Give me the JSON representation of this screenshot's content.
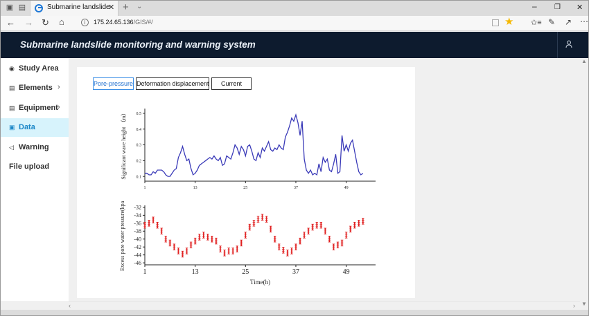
{
  "browser": {
    "tab_title": "Submarine landslide",
    "url_host": "175.24.65.136",
    "url_path": "/GIS/#/"
  },
  "icons": {
    "tab_actions": "tab-actions-icon",
    "tab_preview": "tab-preview-icon",
    "favicon": "edge-favicon-icon",
    "close": "close-icon",
    "new_tab": "plus-icon",
    "back": "back-arrow-icon",
    "forward": "forward-arrow-icon",
    "refresh": "refresh-icon",
    "home": "home-icon",
    "favorite": "star-icon",
    "user": "user-icon"
  },
  "app": {
    "title": "Submarine landslide monitoring and warning system"
  },
  "sidebar": {
    "items": [
      {
        "label": "Study Area",
        "icon": "map-pin-icon",
        "has_submenu": false
      },
      {
        "label": "Elements",
        "icon": "bar-chart-icon",
        "has_submenu": true
      },
      {
        "label": "Equipment",
        "icon": "bar-chart-icon",
        "has_submenu": true
      },
      {
        "label": "Data",
        "icon": "monitor-icon",
        "has_submenu": false,
        "active": true
      },
      {
        "label": "Warning",
        "icon": "speaker-icon",
        "has_submenu": false
      },
      {
        "label": "File upload",
        "icon": "",
        "has_submenu": false
      }
    ]
  },
  "data_tabs": {
    "pore_pressure": "Pore-pressure",
    "deformation": "Deformation displacement",
    "current": "Current",
    "selected": "Pore-pressure"
  },
  "colors": {
    "header_bg": "#0d1b2e",
    "active_bg": "#d7f3fc",
    "active_text": "#1a86c7",
    "wave_series": "#3a3ab8",
    "pressure_series": "#e02020"
  },
  "chart_data": [
    {
      "type": "line",
      "ylabel": "Significant wave height （m）",
      "xlabel": "",
      "xticks": [
        1,
        13,
        25,
        37,
        49
      ],
      "yticks": [
        0.1,
        0.2,
        0.3,
        0.4,
        0.5
      ],
      "ylim": [
        0.07,
        0.53
      ],
      "xlim": [
        1,
        56
      ],
      "x": [
        1,
        1.5,
        2,
        2.5,
        3,
        3.5,
        4,
        4.5,
        5,
        5.5,
        6,
        6.5,
        7,
        7.5,
        8,
        8.5,
        9,
        9.5,
        10,
        10.5,
        11,
        11.5,
        12,
        12.5,
        13,
        13.5,
        14,
        14.5,
        15,
        15.5,
        16,
        16.5,
        17,
        17.5,
        18,
        18.5,
        19,
        19.5,
        20,
        20.5,
        21,
        21.5,
        22,
        22.5,
        23,
        23.5,
        24,
        24.5,
        25,
        25.5,
        26,
        26.5,
        27,
        27.5,
        28,
        28.5,
        29,
        29.5,
        30,
        30.5,
        31,
        31.5,
        32,
        32.5,
        33,
        33.5,
        34,
        34.5,
        35,
        35.5,
        36,
        36.5,
        37,
        37.5,
        38,
        38.5,
        39,
        39.5,
        40,
        40.5,
        41,
        41.5,
        42,
        42.5,
        43,
        43.5,
        44,
        44.5,
        45,
        45.5,
        46,
        46.5,
        47,
        47.5,
        48,
        48.5,
        49,
        49.5,
        50,
        50.5,
        51,
        51.5,
        52,
        52.5,
        53
      ],
      "series": [
        {
          "values": [
            0.12,
            0.12,
            0.11,
            0.11,
            0.13,
            0.12,
            0.14,
            0.14,
            0.14,
            0.13,
            0.11,
            0.1,
            0.1,
            0.12,
            0.14,
            0.15,
            0.22,
            0.25,
            0.29,
            0.24,
            0.2,
            0.21,
            0.15,
            0.11,
            0.12,
            0.14,
            0.17,
            0.18,
            0.19,
            0.2,
            0.21,
            0.22,
            0.21,
            0.23,
            0.21,
            0.2,
            0.22,
            0.17,
            0.18,
            0.23,
            0.22,
            0.21,
            0.25,
            0.3,
            0.28,
            0.24,
            0.29,
            0.27,
            0.23,
            0.29,
            0.3,
            0.26,
            0.21,
            0.2,
            0.25,
            0.22,
            0.28,
            0.26,
            0.29,
            0.32,
            0.27,
            0.26,
            0.28,
            0.27,
            0.3,
            0.28,
            0.27,
            0.35,
            0.38,
            0.42,
            0.47,
            0.45,
            0.49,
            0.44,
            0.36,
            0.45,
            0.21,
            0.14,
            0.12,
            0.14,
            0.11,
            0.12,
            0.11,
            0.18,
            0.13,
            0.22,
            0.19,
            0.21,
            0.14,
            0.13,
            0.18,
            0.24,
            0.12,
            0.13,
            0.36,
            0.26,
            0.3,
            0.26,
            0.31,
            0.33,
            0.26,
            0.19,
            0.13,
            0.11,
            0.12
          ]
        }
      ]
    },
    {
      "type": "scatter",
      "ylabel": "Excess pore water pressure(kpa)",
      "xlabel": "Time(h)",
      "xticks": [
        1,
        13,
        25,
        37,
        49
      ],
      "yticks": [
        -32,
        -34,
        -36,
        -38,
        -40,
        -42,
        -44,
        -46
      ],
      "ylim": [
        -46.5,
        -31.5
      ],
      "xlim": [
        1,
        56
      ],
      "x": [
        1,
        2,
        3,
        4,
        5,
        6,
        7,
        8,
        9,
        10,
        11,
        12,
        13,
        14,
        15,
        16,
        17,
        18,
        19,
        20,
        21,
        22,
        23,
        24,
        25,
        26,
        27,
        28,
        29,
        30,
        31,
        32,
        33,
        34,
        35,
        36,
        37,
        38,
        39,
        40,
        41,
        42,
        43,
        44,
        45,
        46,
        47,
        48,
        49,
        50,
        51,
        52,
        53
      ],
      "series": [
        {
          "values": [
            -36.5,
            -36,
            -35.2,
            -36.5,
            -38,
            -40,
            -41,
            -42,
            -43,
            -43.8,
            -43,
            -41.5,
            -40.5,
            -39.5,
            -39,
            -39.5,
            -40,
            -40.5,
            -42.5,
            -43.5,
            -43,
            -43,
            -42.5,
            -41,
            -39,
            -37,
            -36,
            -35,
            -34.5,
            -35,
            -37.5,
            -40,
            -42,
            -42.8,
            -43.5,
            -43,
            -42,
            -40.5,
            -39,
            -38,
            -37,
            -36.5,
            -36.5,
            -38,
            -40,
            -42,
            -41.5,
            -41,
            -39,
            -37.5,
            -36.5,
            -36,
            -35.5
          ],
          "spread": 1.5
        }
      ]
    }
  ]
}
